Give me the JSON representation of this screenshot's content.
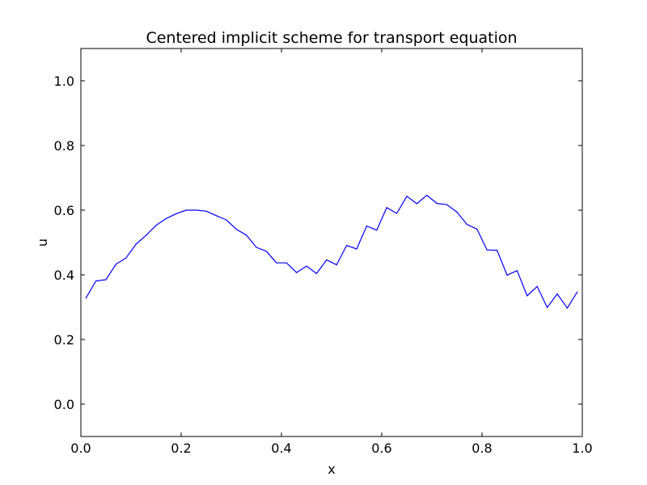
{
  "chart_data": {
    "type": "line",
    "title": "Centered implicit scheme for transport equation",
    "xlabel": "x",
    "ylabel": "u",
    "xlim": [
      0.0,
      1.0
    ],
    "ylim": [
      -0.1,
      1.1
    ],
    "xticks": [
      "0.0",
      "0.2",
      "0.4",
      "0.6",
      "0.8",
      "1.0"
    ],
    "yticks": [
      "0.0",
      "0.2",
      "0.4",
      "0.6",
      "0.8",
      "1.0"
    ],
    "grid": false,
    "legend": "none",
    "series": [
      {
        "color": "#0000ff",
        "x": [
          0.01,
          0.03,
          0.05,
          0.07,
          0.09,
          0.11,
          0.13,
          0.15,
          0.17,
          0.19,
          0.21,
          0.23,
          0.25,
          0.27,
          0.29,
          0.31,
          0.33,
          0.35,
          0.37,
          0.39,
          0.41,
          0.43,
          0.45,
          0.47,
          0.49,
          0.51,
          0.53,
          0.55,
          0.57,
          0.59,
          0.61,
          0.63,
          0.65,
          0.67,
          0.69,
          0.71,
          0.73,
          0.75,
          0.77,
          0.79,
          0.81,
          0.83,
          0.85,
          0.87,
          0.89,
          0.91,
          0.93,
          0.95,
          0.97,
          0.99
        ],
        "y": [
          0.328,
          0.381,
          0.385,
          0.433,
          0.452,
          0.495,
          0.522,
          0.553,
          0.574,
          0.589,
          0.6,
          0.6,
          0.597,
          0.583,
          0.57,
          0.541,
          0.523,
          0.485,
          0.473,
          0.437,
          0.437,
          0.407,
          0.427,
          0.404,
          0.446,
          0.431,
          0.491,
          0.48,
          0.551,
          0.538,
          0.608,
          0.59,
          0.643,
          0.62,
          0.646,
          0.621,
          0.617,
          0.594,
          0.556,
          0.541,
          0.477,
          0.476,
          0.399,
          0.413,
          0.335,
          0.364,
          0.299,
          0.341,
          0.297,
          0.347
        ]
      }
    ]
  }
}
